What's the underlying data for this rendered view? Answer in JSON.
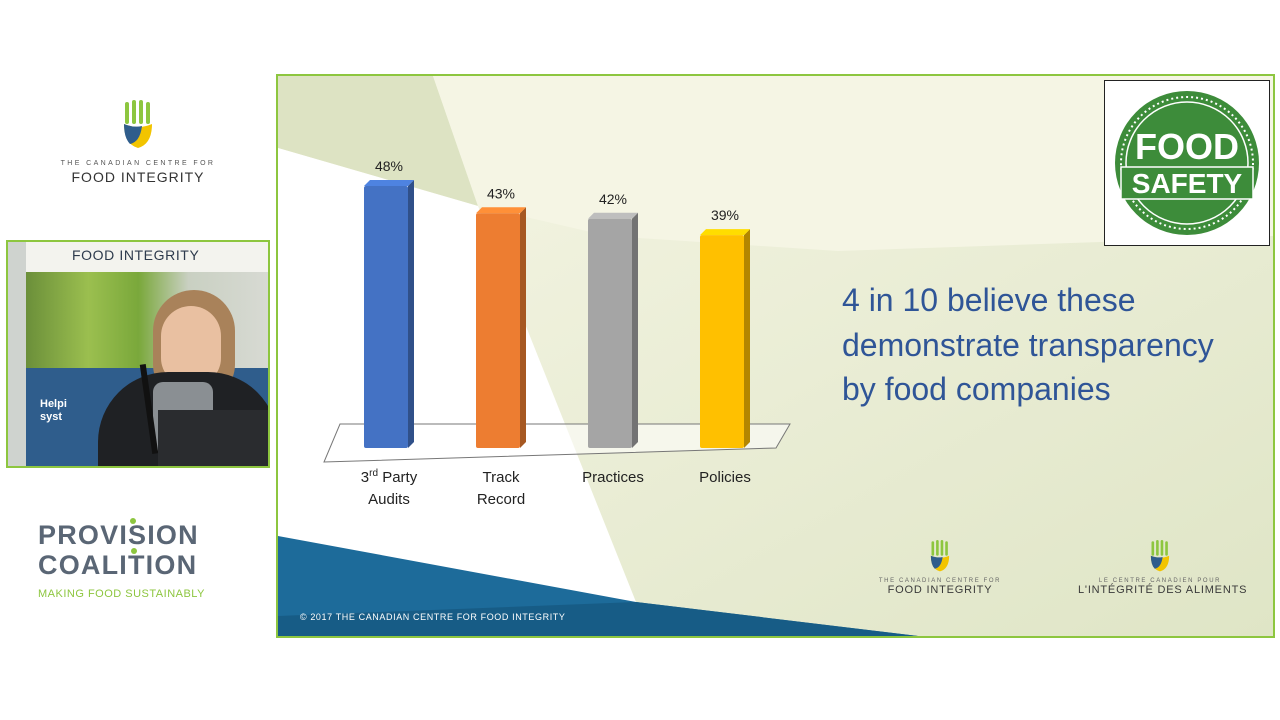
{
  "sidebar": {
    "cfi_logo": {
      "small": "THE CANADIAN CENTRE FOR",
      "big": "FOOD INTEGRITY"
    },
    "video": {
      "banner_title": "FOOD INTEGRITY",
      "banner_help_1": "Helpi",
      "banner_help_2": "syst"
    },
    "provision_logo": {
      "line1": "PROVISION",
      "line2": "COALITION",
      "tagline": "MAKING FOOD SUSTAINABLY"
    }
  },
  "slide": {
    "headline": "4 in 10 believe these  demonstrate transparency by food companies",
    "badge": {
      "line1": "FOOD",
      "line2": "SAFETY"
    },
    "copyright": "© 2017 THE CANADIAN CENTRE FOR FOOD INTEGRITY",
    "footer_logo_en": {
      "small": "THE CANADIAN CENTRE FOR",
      "big": "FOOD INTEGRITY"
    },
    "footer_logo_fr": {
      "small": "LE CENTRE CANADIEN POUR",
      "big": "L'INTÉGRITÉ DES ALIMENTS"
    }
  },
  "chart_data": {
    "type": "bar",
    "categories": [
      {
        "line1": "3",
        "sup": "rd",
        "line1_rest": " Party",
        "line2": "Audits"
      },
      {
        "line1": "Track",
        "sup": "",
        "line1_rest": "",
        "line2": "Record"
      },
      {
        "line1": "Practices",
        "sup": "",
        "line1_rest": "",
        "line2": ""
      },
      {
        "line1": "Policies",
        "sup": "",
        "line1_rest": "",
        "line2": ""
      }
    ],
    "values": [
      48,
      43,
      42,
      39
    ],
    "value_labels": [
      "48%",
      "43%",
      "42%",
      "39%"
    ],
    "colors": [
      "#4472c4",
      "#ed7d31",
      "#a5a5a5",
      "#ffc000"
    ],
    "ylim": [
      0,
      48
    ]
  }
}
